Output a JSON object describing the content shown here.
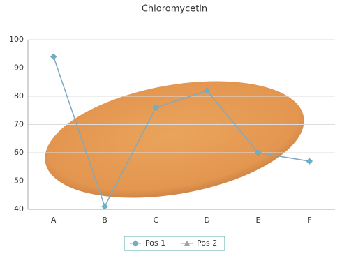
{
  "chart_data": {
    "type": "line",
    "title": "Chloromycetin",
    "categories": [
      "A",
      "B",
      "C",
      "D",
      "E",
      "F"
    ],
    "series": [
      {
        "name": "Pos 1",
        "color": "#5bb8d0",
        "values": [
          94,
          41,
          76,
          82,
          60,
          57
        ]
      },
      {
        "name": "Pos 2",
        "color": "#a0a0a0",
        "values": [
          null,
          null,
          null,
          null,
          null,
          null
        ]
      }
    ],
    "ylim": [
      40,
      100
    ],
    "yticks": [
      40,
      50,
      60,
      70,
      80,
      90,
      100
    ],
    "grid": true,
    "legend": "bottom"
  }
}
